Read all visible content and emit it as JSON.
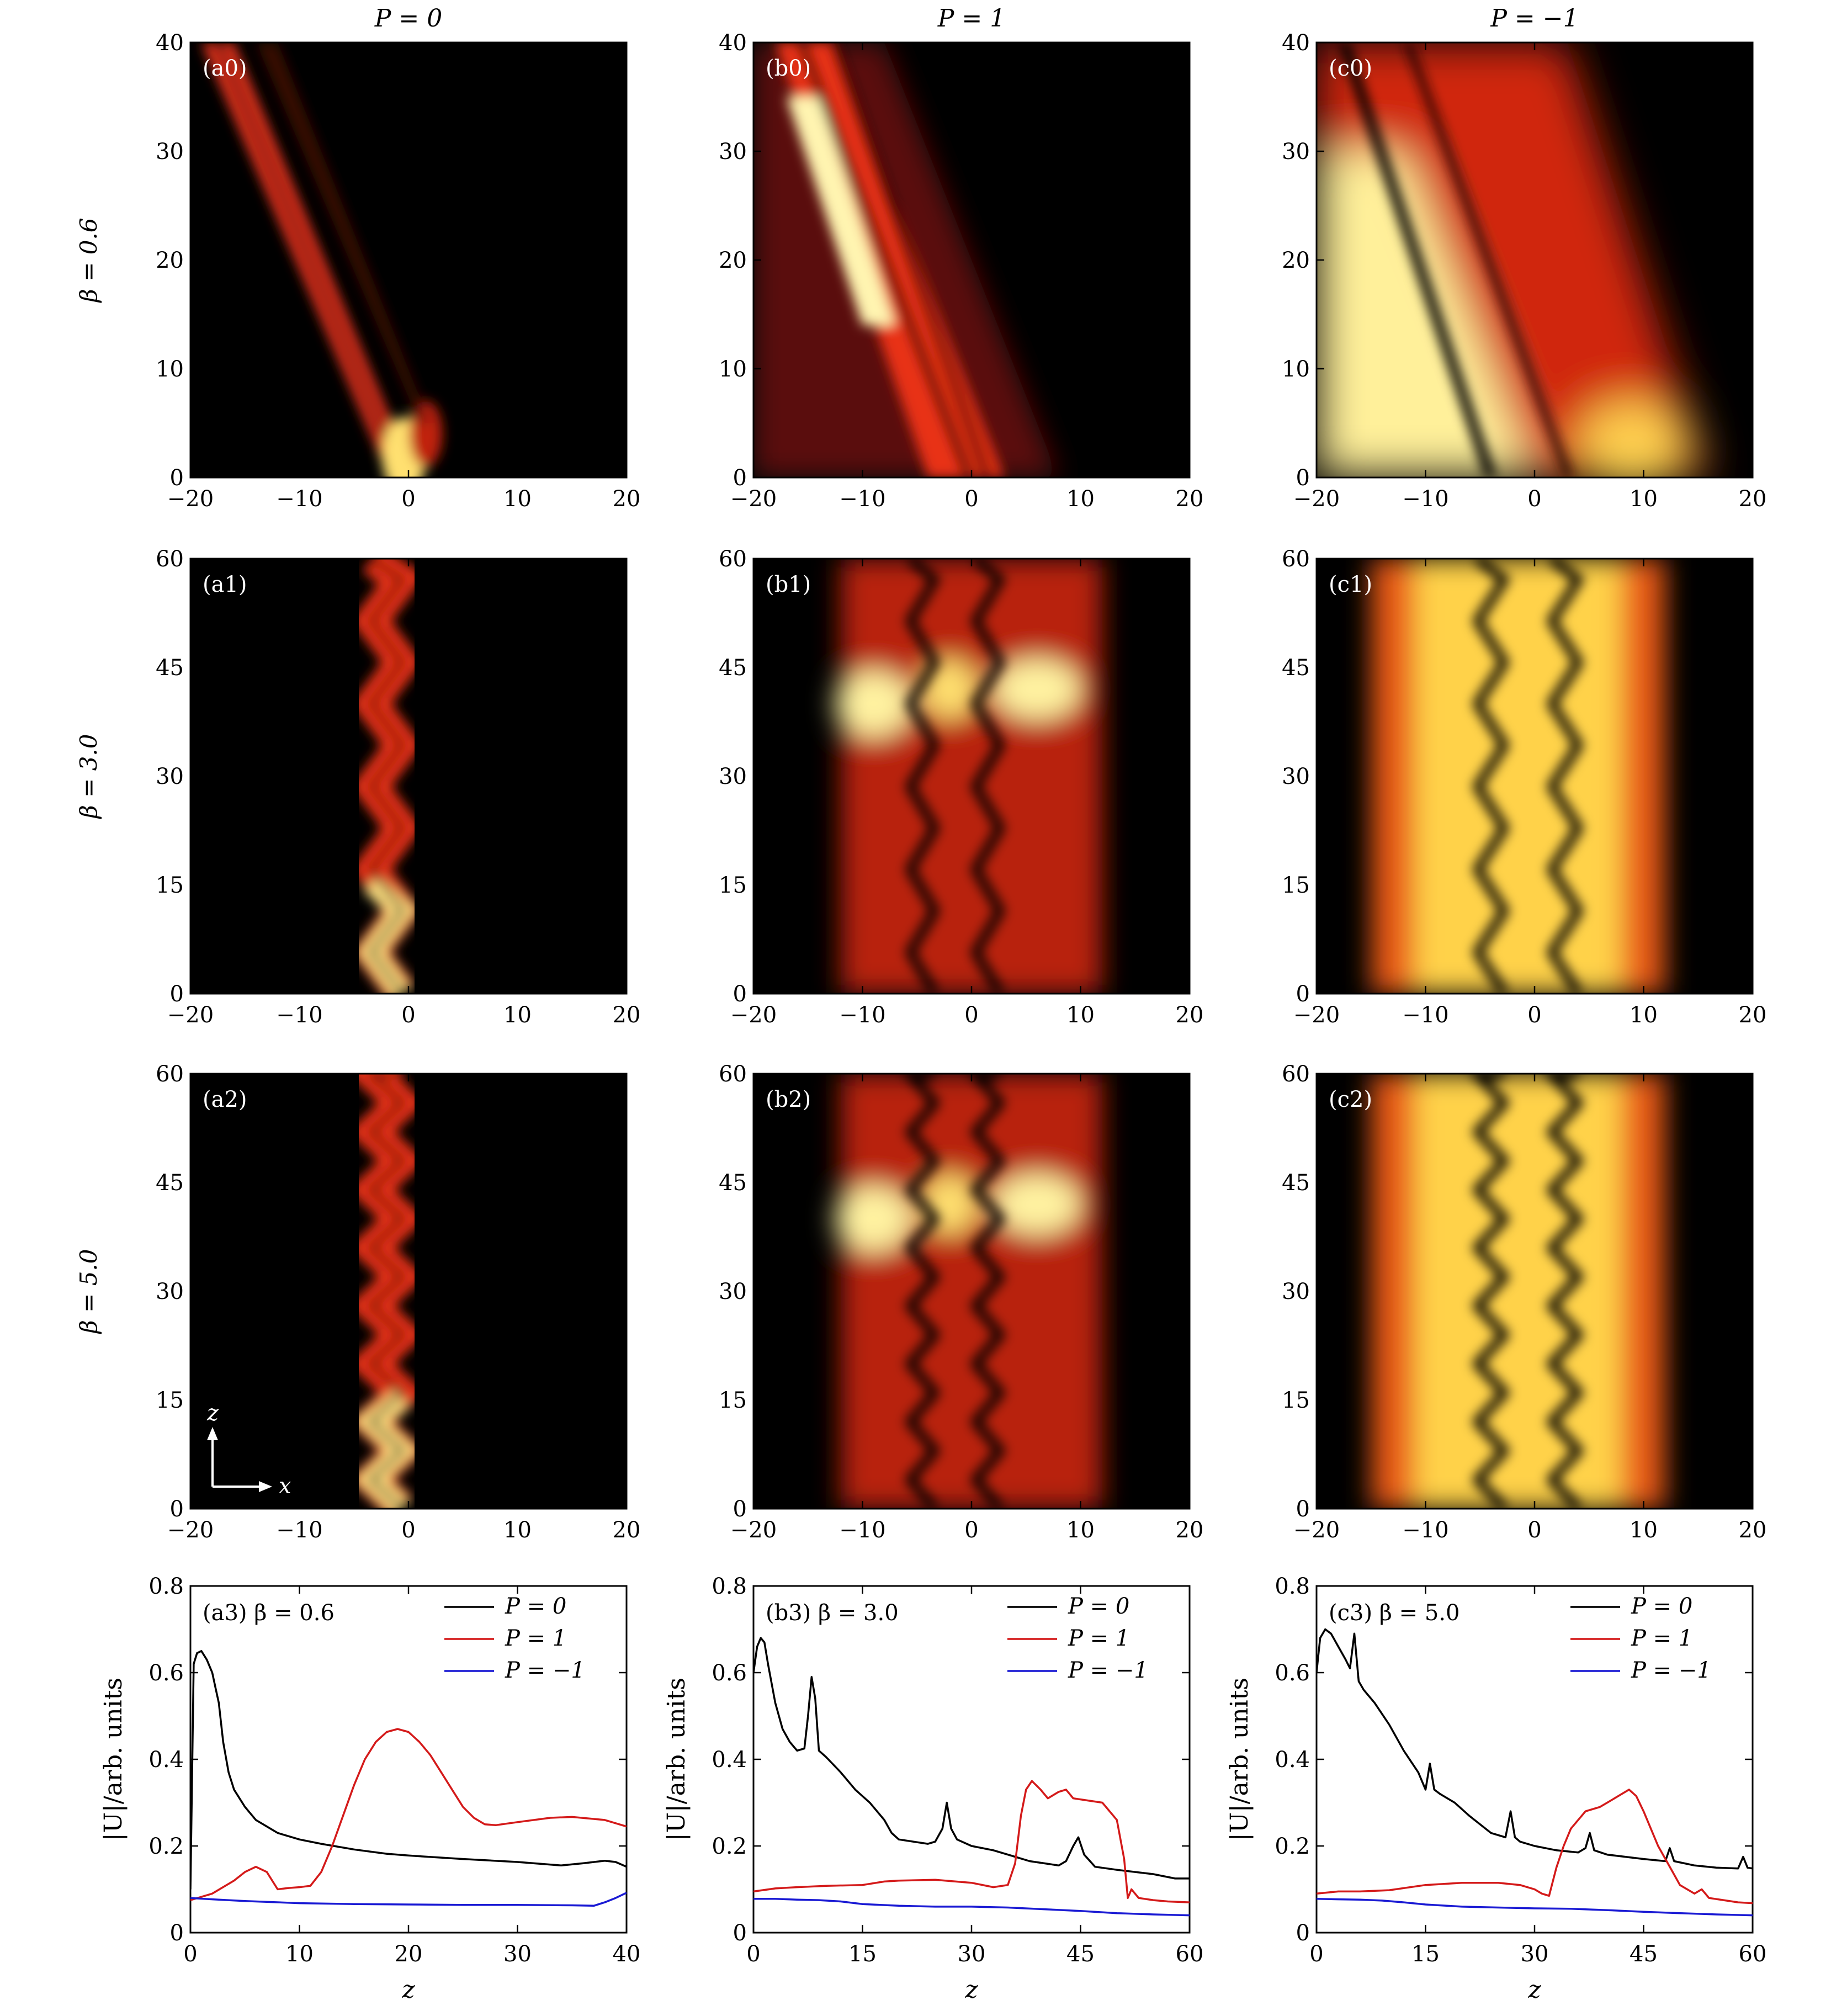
{
  "figure": {
    "column_titles": [
      "P = 0",
      "P = 1",
      "P = −1"
    ],
    "row_titles": [
      "β = 0.6",
      "β = 3.0",
      "β = 5.0"
    ],
    "inset_axes": {
      "z": "z",
      "x": "x"
    }
  },
  "chart_data": [
    {
      "id": "a0",
      "type": "heatmap",
      "label": "(a0)",
      "xlim": [
        -20,
        20
      ],
      "ylim": [
        0,
        40
      ],
      "xticks": [
        -20,
        -10,
        0,
        10,
        20
      ],
      "yticks": [
        0,
        10,
        20,
        30,
        40
      ],
      "colormap": "hot"
    },
    {
      "id": "b0",
      "type": "heatmap",
      "label": "(b0)",
      "xlim": [
        -20,
        20
      ],
      "ylim": [
        0,
        40
      ],
      "xticks": [
        -20,
        -10,
        0,
        10,
        20
      ],
      "yticks": [
        0,
        10,
        20,
        30,
        40
      ],
      "colormap": "hot"
    },
    {
      "id": "c0",
      "type": "heatmap",
      "label": "(c0)",
      "xlim": [
        -20,
        20
      ],
      "ylim": [
        0,
        40
      ],
      "xticks": [
        -20,
        -10,
        0,
        10,
        20
      ],
      "yticks": [
        0,
        10,
        20,
        30,
        40
      ],
      "colormap": "hot"
    },
    {
      "id": "a1",
      "type": "heatmap",
      "label": "(a1)",
      "xlim": [
        -20,
        20
      ],
      "ylim": [
        0,
        60
      ],
      "xticks": [
        -20,
        -10,
        0,
        10,
        20
      ],
      "yticks": [
        0,
        15,
        30,
        45,
        60
      ],
      "colormap": "hot"
    },
    {
      "id": "b1",
      "type": "heatmap",
      "label": "(b1)",
      "xlim": [
        -20,
        20
      ],
      "ylim": [
        0,
        60
      ],
      "xticks": [
        -20,
        -10,
        0,
        10,
        20
      ],
      "yticks": [
        0,
        15,
        30,
        45,
        60
      ],
      "colormap": "hot"
    },
    {
      "id": "c1",
      "type": "heatmap",
      "label": "(c1)",
      "xlim": [
        -20,
        20
      ],
      "ylim": [
        0,
        60
      ],
      "xticks": [
        -20,
        -10,
        0,
        10,
        20
      ],
      "yticks": [
        0,
        15,
        30,
        45,
        60
      ],
      "colormap": "hot"
    },
    {
      "id": "a2",
      "type": "heatmap",
      "label": "(a2)",
      "xlim": [
        -20,
        20
      ],
      "ylim": [
        0,
        60
      ],
      "xticks": [
        -20,
        -10,
        0,
        10,
        20
      ],
      "yticks": [
        0,
        15,
        30,
        45,
        60
      ],
      "colormap": "hot"
    },
    {
      "id": "b2",
      "type": "heatmap",
      "label": "(b2)",
      "xlim": [
        -20,
        20
      ],
      "ylim": [
        0,
        60
      ],
      "xticks": [
        -20,
        -10,
        0,
        10,
        20
      ],
      "yticks": [
        0,
        15,
        30,
        45,
        60
      ],
      "colormap": "hot"
    },
    {
      "id": "c2",
      "type": "heatmap",
      "label": "(c2)",
      "xlim": [
        -20,
        20
      ],
      "ylim": [
        0,
        60
      ],
      "xticks": [
        -20,
        -10,
        0,
        10,
        20
      ],
      "yticks": [
        0,
        15,
        30,
        45,
        60
      ],
      "colormap": "hot"
    },
    {
      "id": "a3",
      "type": "line",
      "label": "(a3)  β = 0.6",
      "xlabel": "z",
      "ylabel": "|U|/arb. units",
      "xlim": [
        0,
        40
      ],
      "ylim": [
        0,
        0.8
      ],
      "xticks": [
        0,
        10,
        20,
        30,
        40
      ],
      "yticks": [
        0,
        0.2,
        0.4,
        0.6,
        0.8
      ],
      "series": [
        {
          "name": "P = 0",
          "color": "#000000",
          "x": [
            0,
            0.3,
            0.6,
            1,
            1.5,
            2,
            2.3,
            2.6,
            3,
            3.5,
            4,
            5,
            6,
            8,
            10,
            12,
            15,
            18,
            20,
            25,
            30,
            34,
            36,
            38,
            39,
            40
          ],
          "y": [
            0.1,
            0.62,
            0.645,
            0.65,
            0.63,
            0.6,
            0.565,
            0.53,
            0.44,
            0.37,
            0.33,
            0.29,
            0.26,
            0.23,
            0.215,
            0.205,
            0.192,
            0.182,
            0.178,
            0.17,
            0.163,
            0.155,
            0.16,
            0.166,
            0.163,
            0.152
          ]
        },
        {
          "name": "P = 1",
          "color": "#d41a1a",
          "x": [
            0,
            2,
            4,
            5,
            6,
            7,
            8,
            9,
            10,
            11,
            12,
            13,
            14,
            15,
            16,
            17,
            18,
            19,
            20,
            21,
            22,
            23,
            24,
            25,
            26,
            27,
            28,
            30,
            33,
            35,
            38,
            40
          ],
          "y": [
            0.075,
            0.09,
            0.12,
            0.14,
            0.152,
            0.14,
            0.1,
            0.103,
            0.105,
            0.108,
            0.14,
            0.2,
            0.27,
            0.34,
            0.4,
            0.44,
            0.463,
            0.47,
            0.463,
            0.44,
            0.41,
            0.37,
            0.33,
            0.29,
            0.265,
            0.25,
            0.248,
            0.255,
            0.265,
            0.267,
            0.26,
            0.245
          ]
        },
        {
          "name": "P = −1",
          "color": "#1a1ad4",
          "x": [
            0,
            2,
            5,
            10,
            15,
            20,
            25,
            30,
            35,
            37,
            38,
            39,
            40
          ],
          "y": [
            0.08,
            0.077,
            0.073,
            0.068,
            0.066,
            0.065,
            0.064,
            0.064,
            0.063,
            0.062,
            0.07,
            0.08,
            0.092
          ]
        }
      ]
    },
    {
      "id": "b3",
      "type": "line",
      "label": "(b3)  β = 3.0",
      "xlabel": "z",
      "ylabel": "|U|/arb. units",
      "xlim": [
        0,
        60
      ],
      "ylim": [
        0,
        0.8
      ],
      "xticks": [
        0,
        15,
        30,
        45,
        60
      ],
      "yticks": [
        0,
        0.2,
        0.4,
        0.6,
        0.8
      ],
      "series": [
        {
          "name": "P = 0",
          "color": "#000000",
          "x": [
            0,
            0.5,
            1,
            1.5,
            2,
            3,
            4,
            5,
            6,
            7,
            7.5,
            8,
            8.5,
            9,
            10,
            12,
            14,
            16,
            18,
            19,
            20,
            22,
            24,
            25,
            26,
            26.6,
            27.2,
            28,
            30,
            33,
            36,
            38,
            40,
            42,
            43,
            44,
            44.7,
            45.5,
            47,
            50,
            55,
            58,
            60
          ],
          "y": [
            0.6,
            0.66,
            0.68,
            0.67,
            0.62,
            0.53,
            0.47,
            0.44,
            0.42,
            0.425,
            0.5,
            0.59,
            0.54,
            0.42,
            0.405,
            0.37,
            0.33,
            0.3,
            0.26,
            0.23,
            0.215,
            0.21,
            0.205,
            0.21,
            0.24,
            0.3,
            0.24,
            0.215,
            0.2,
            0.19,
            0.175,
            0.165,
            0.16,
            0.155,
            0.165,
            0.2,
            0.22,
            0.18,
            0.152,
            0.145,
            0.135,
            0.125,
            0.125
          ]
        },
        {
          "name": "P = 1",
          "color": "#d41a1a",
          "x": [
            0,
            3,
            6,
            10,
            15,
            18,
            20,
            25,
            30,
            33,
            35,
            36,
            36.8,
            37.5,
            38.3,
            39.5,
            40.5,
            42,
            43,
            44,
            46,
            48,
            50,
            51,
            51.5,
            52,
            53,
            55,
            57,
            60
          ],
          "y": [
            0.095,
            0.102,
            0.105,
            0.108,
            0.11,
            0.118,
            0.12,
            0.122,
            0.115,
            0.105,
            0.11,
            0.16,
            0.27,
            0.33,
            0.35,
            0.33,
            0.31,
            0.325,
            0.33,
            0.31,
            0.305,
            0.3,
            0.26,
            0.17,
            0.08,
            0.1,
            0.08,
            0.075,
            0.072,
            0.07
          ]
        },
        {
          "name": "P = −1",
          "color": "#1a1ad4",
          "x": [
            0,
            3,
            6,
            9,
            12,
            15,
            20,
            25,
            30,
            35,
            40,
            45,
            50,
            55,
            60
          ],
          "y": [
            0.078,
            0.078,
            0.076,
            0.075,
            0.072,
            0.066,
            0.062,
            0.06,
            0.06,
            0.058,
            0.054,
            0.05,
            0.045,
            0.042,
            0.04
          ]
        }
      ]
    },
    {
      "id": "c3",
      "type": "line",
      "label": "(c3)  β = 5.0",
      "xlabel": "z",
      "ylabel": "|U|/arb. units",
      "xlim": [
        0,
        60
      ],
      "ylim": [
        0,
        0.8
      ],
      "xticks": [
        0,
        15,
        30,
        45,
        60
      ],
      "yticks": [
        0,
        0.2,
        0.4,
        0.6,
        0.8
      ],
      "series": [
        {
          "name": "P = 0",
          "color": "#000000",
          "x": [
            0,
            0.5,
            1.2,
            2,
            3,
            4,
            4.6,
            5.2,
            5.8,
            6.5,
            8,
            10,
            12,
            14,
            15,
            15.6,
            16.2,
            17,
            19,
            21,
            24,
            26,
            26.7,
            27.3,
            28,
            30,
            33,
            36,
            37,
            37.6,
            38.2,
            40,
            45,
            48,
            48.6,
            49.2,
            52,
            55,
            58,
            58.7,
            59.3,
            60
          ],
          "y": [
            0.6,
            0.68,
            0.7,
            0.69,
            0.66,
            0.63,
            0.61,
            0.69,
            0.58,
            0.56,
            0.53,
            0.48,
            0.42,
            0.37,
            0.33,
            0.39,
            0.33,
            0.32,
            0.3,
            0.27,
            0.23,
            0.22,
            0.28,
            0.22,
            0.21,
            0.2,
            0.19,
            0.185,
            0.195,
            0.23,
            0.19,
            0.18,
            0.17,
            0.165,
            0.195,
            0.165,
            0.155,
            0.15,
            0.148,
            0.175,
            0.15,
            0.148
          ]
        },
        {
          "name": "P = 1",
          "color": "#d41a1a",
          "x": [
            0,
            3,
            6,
            10,
            15,
            20,
            25,
            28,
            30,
            31,
            32,
            33,
            34,
            35,
            37,
            39,
            40,
            42,
            43,
            44,
            45,
            47,
            49,
            50,
            52,
            53,
            54,
            56,
            58,
            60
          ],
          "y": [
            0.09,
            0.095,
            0.095,
            0.098,
            0.11,
            0.115,
            0.115,
            0.11,
            0.1,
            0.09,
            0.085,
            0.15,
            0.2,
            0.24,
            0.28,
            0.29,
            0.3,
            0.32,
            0.33,
            0.315,
            0.28,
            0.2,
            0.14,
            0.11,
            0.09,
            0.1,
            0.08,
            0.075,
            0.07,
            0.068
          ]
        },
        {
          "name": "P = −1",
          "color": "#1a1ad4",
          "x": [
            0,
            3,
            6,
            9,
            12,
            15,
            20,
            25,
            30,
            35,
            40,
            45,
            50,
            55,
            60
          ],
          "y": [
            0.078,
            0.077,
            0.076,
            0.074,
            0.07,
            0.065,
            0.06,
            0.058,
            0.056,
            0.055,
            0.052,
            0.048,
            0.045,
            0.042,
            0.04
          ]
        }
      ]
    }
  ]
}
